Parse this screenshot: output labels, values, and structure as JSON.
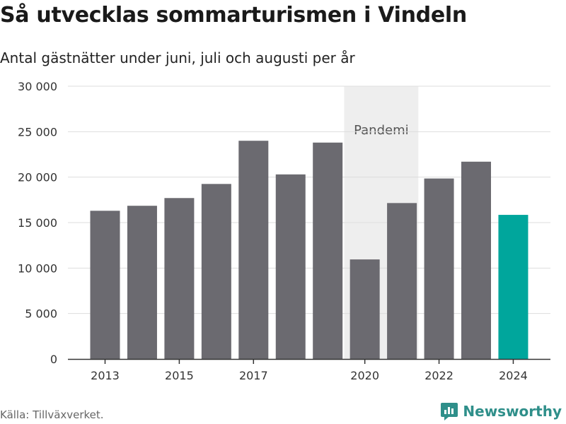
{
  "title": "Så utvecklas sommarturismen i Vindeln",
  "subtitle": "Antal gästnätter under juni, juli och augusti per år",
  "source": "Källa: Tillväxverket.",
  "brand": {
    "name": "Newsworthy",
    "icon": "newsworthy-logo-icon",
    "color": "#2f8f8a"
  },
  "colors": {
    "bar": "#6b6a70",
    "highlight": "#00a69c",
    "shade": "#eeeeee",
    "grid": "#dddddd",
    "axis": "#333333"
  },
  "chart_data": {
    "type": "bar",
    "categories": [
      "2013",
      "2014",
      "2015",
      "2016",
      "2017",
      "2018",
      "2019",
      "2020",
      "2021",
      "2022",
      "2023",
      "2024"
    ],
    "values": [
      16300,
      16850,
      17700,
      19250,
      24000,
      20300,
      23800,
      10950,
      17150,
      19850,
      21700,
      15850
    ],
    "highlight_category": "2024",
    "x_tick_labels": [
      "2013",
      "2015",
      "2017",
      "2020",
      "2022",
      "2024"
    ],
    "ylim": [
      0,
      30000
    ],
    "y_ticks": [
      0,
      5000,
      10000,
      15000,
      20000,
      25000,
      30000
    ],
    "y_tick_labels": [
      "0",
      "5 000",
      "10 000",
      "15 000",
      "20 000",
      "25 000",
      "30 000"
    ],
    "grid": true,
    "xlabel": "",
    "ylabel": "",
    "annotations": [
      {
        "label": "Pandemi",
        "from": "2020",
        "to": "2021"
      }
    ]
  }
}
